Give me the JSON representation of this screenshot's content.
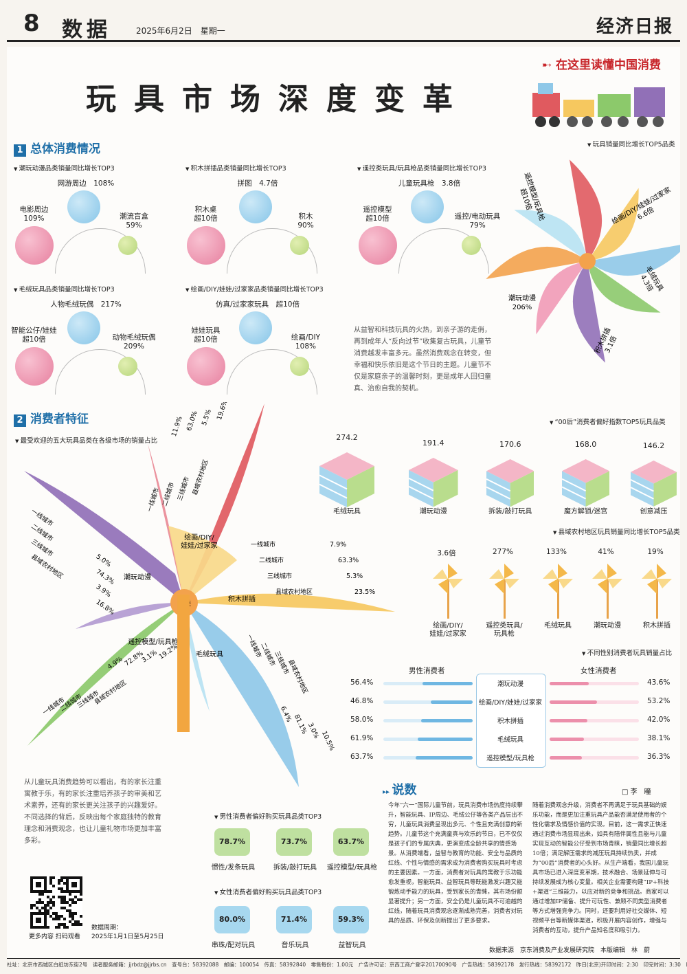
{
  "masthead": {
    "page_number": "8",
    "section": "数据",
    "date": "2025年6月2日　星期一",
    "brand": "经济日报"
  },
  "main_title": "玩具市场深度变革",
  "slogan": "在这里读懂中国消费",
  "section1": {
    "num": "1",
    "title": "总体消费情况",
    "panels": [
      {
        "subtitle": "潮玩动漫品类销量同比增长TOP3",
        "left": "电影周边\n109%",
        "top": "网游周边　108%",
        "right": "潮流盲盒\n59%"
      },
      {
        "subtitle": "积木拼插品类销量同比增长TOP3",
        "left": "积木桌\n超10倍",
        "top": "拼图　4.7倍",
        "right": "积木\n90%"
      },
      {
        "subtitle": "遥控类玩具/玩具枪品类销量同比增长TOP3",
        "left": "遥控模型\n超10倍",
        "top": "儿童玩具枪　3.8倍",
        "right": "遥控/电动玩具\n79%"
      },
      {
        "subtitle": "毛绒玩具品类销量同比增长TOP3",
        "left": "智能公仔/娃娃\n超10倍",
        "top": "人物毛绒玩偶　217%",
        "right": "动物毛绒玩偶\n209%"
      },
      {
        "subtitle": "绘画/DIY/娃娃/过家家品类销量同比增长TOP3",
        "left": "娃娃玩具\n超10倍",
        "top": "仿真/过家家玩具　超10倍",
        "right": "绘画/DIY\n108%"
      }
    ],
    "top5_title": "玩具销量同比增长TOP5品类",
    "top5": [
      {
        "label": "遥控模型/玩具枪",
        "value": "超10倍"
      },
      {
        "label": "绘画/DIY/娃娃/过家家",
        "value": "6.6倍"
      },
      {
        "label": "毛绒玩具",
        "value": "4.3倍"
      },
      {
        "label": "积木拼插",
        "value": "3.1倍"
      },
      {
        "label": "潮玩动漫",
        "value": "206%"
      }
    ],
    "text": "从益智和科技玩具的火热，到亲子游的走俏，再到成年人“反向过节”收集复古玩具，儿童节消费越发丰富多元。虽然消费观念在转变，但幸福和快乐依旧是这个节日的主题。儿童节不仅是家庭亲子的温馨时刻，更是成年人回归童真、治愈自我的契机。"
  },
  "section2": {
    "num": "2",
    "title": "消费者特征",
    "pinwheel_subtitle": "最受欢迎的五大玩具品类在各级市场的销量占比",
    "center": "品类",
    "categories": [
      {
        "name": "潮玩动漫",
        "rows": [
          [
            "一线城市",
            "5.0%"
          ],
          [
            "二线城市",
            "74.3%"
          ],
          [
            "三线城市",
            "3.9%"
          ],
          [
            "县域农村地区",
            "16.8%"
          ]
        ]
      },
      {
        "name": "遥控模型/玩具枪",
        "rows": [
          [
            "一线城市",
            "11.9%"
          ],
          [
            "二线城市",
            "63.0%"
          ],
          [
            "三线城市",
            "5.5%"
          ],
          [
            "县域农村地区",
            "19.6%"
          ]
        ]
      },
      {
        "name": "绘画/DIY/\n娃娃/过家家",
        "rows": [
          [
            "一线城市",
            "7.9%"
          ],
          [
            "二线城市",
            "63.3%"
          ],
          [
            "三线城市",
            "5.3%"
          ],
          [
            "县域农村地区",
            "23.5%"
          ]
        ]
      },
      {
        "name": "积木拼插",
        "rows": [
          [
            "一线城市",
            "6.4%"
          ],
          [
            "二线城市",
            "81.1%"
          ],
          [
            "三线城市",
            "3.0%"
          ],
          [
            "县域农村地区",
            "10.5%"
          ]
        ]
      },
      {
        "name": "毛绒玩具",
        "rows": [
          [
            "一线城市",
            "4.9%"
          ],
          [
            "二线城市",
            "72.8%"
          ],
          [
            "三线城市",
            "3.1%"
          ],
          [
            "县域农村地区",
            "19.2%"
          ]
        ]
      }
    ],
    "gen_title": "“00后”消费者偏好指数TOP5玩具品类",
    "gen": [
      {
        "label": "毛绒玩具",
        "value": "274.2",
        "n": 274.2
      },
      {
        "label": "潮玩动漫",
        "value": "191.4",
        "n": 191.4
      },
      {
        "label": "拆装/敲打玩具",
        "value": "170.6",
        "n": 170.6
      },
      {
        "label": "魔方解锁/迷宫",
        "value": "168.0",
        "n": 168.0
      },
      {
        "label": "创意减压",
        "value": "146.2",
        "n": 146.2
      }
    ],
    "county_title": "县域农村地区玩具销量同比增长TOP5品类",
    "county": [
      {
        "label": "绘画/DIY/\n娃娃/过家家",
        "value": "3.6倍"
      },
      {
        "label": "遥控类玩具/\n玩具枪",
        "value": "277%"
      },
      {
        "label": "毛绒玩具",
        "value": "133%"
      },
      {
        "label": "潮玩动漫",
        "value": "41%"
      },
      {
        "label": "积木拼插",
        "value": "19%"
      }
    ],
    "gender_title": "不同性别消费者玩具销量占比",
    "male_label": "男性消费者",
    "female_label": "女性消费者",
    "gender": [
      {
        "cat": "潮玩动漫",
        "male": "56.4%",
        "female": "43.6%",
        "m": 56.4
      },
      {
        "cat": "绘画/DIY/娃娃/过家家",
        "male": "46.8%",
        "female": "53.2%",
        "m": 46.8
      },
      {
        "cat": "积木拼插",
        "male": "58.0%",
        "female": "42.0%",
        "m": 58.0
      },
      {
        "cat": "毛绒玩具",
        "male": "61.9%",
        "female": "38.1%",
        "m": 61.9
      },
      {
        "cat": "遥控模型/玩具枪",
        "male": "63.7%",
        "female": "36.3%",
        "m": 63.7
      }
    ],
    "male_top_title": "男性消费者偏好购买玩具品类TOP3",
    "male_top": [
      {
        "v": "78.7%",
        "l": "惯性/发条玩具"
      },
      {
        "v": "73.7%",
        "l": "拆装/敲打玩具"
      },
      {
        "v": "63.7%",
        "l": "遥控模型/玩具枪"
      }
    ],
    "female_top_title": "女性消费者偏好购买玩具品类TOP3",
    "female_top": [
      {
        "v": "80.0%",
        "l": "串珠/配对玩具"
      },
      {
        "v": "71.4%",
        "l": "音乐玩具"
      },
      {
        "v": "59.3%",
        "l": "益智玩具"
      }
    ],
    "text": "从儿童玩具消费趋势可以看出，有的家长注重寓教于乐，有的家长注重培养孩子的审美和艺术素养，还有的家长更关注孩子的兴趣爱好。不同选择的背后，反映出每个家庭独特的教育理念和消费观念，也让儿童礼物市场更加丰富多彩。"
  },
  "commentary": {
    "title": "说数",
    "author": "李　瞳",
    "col1": "今年“六一”国际儿童节前，玩具消费市场热度持续攀升，智能玩具、IP周边、毛绒公仔等各类产品层出不穷，儿童玩具消费呈现出多元、个性且充满创意的新趋势。儿童节这个充满童真与欢乐的节日，已不仅仅是孩子们的专属庆典，更演变成全龄共享的情感场景。从消费端看，益智与教育的功能、安全与品质的红线、个性与情感的需求成为消费者购买玩具时考虑的主要因素。一方面，消费者对玩具的寓教于乐功能愈发重视，智能玩具、益智玩具等既能激发兴趣又能锻炼动手能力的玩具，受到家长的青睐，其市场份额显著提升；另一方面，安全仍是儿童玩具不可逾越的红线，随着玩具消费观念逐渐成熟完善，消费者对玩具的品质、环保及创新提出了更多要求。",
    "col2": "随着消费观念升级，消费者不再满足于玩具基础的娱乐功能，而是更加注重玩具产品能否满足使用者的个性化需求及情感价值的实现。目前，这一需求正快速通过消费市场显现出来，如具有陪伴属性且能与儿童实现互动的智能公仔受到市场青睐，销量同比增长超10倍；满足解压需求的减压玩具持续热卖，并成为“00后”消费者的心头好。从生产端看，我国儿童玩具市场已进入深度变革期，技术融合、场景延伸与可持续发展成为核心变量。相关企业需要构建“IP+科技+渠道”三维能力，以应对新的竞争和挑战。商家可以通过增加IP储备、提升可玩性、兼顾不同类型消费者等方式增强竞争力。同时，还要利用好社交媒体、短视频平台等新媒体渠道，积极开展内容创作，增强与消费者的互动，提升产品知名度和吸引力。"
  },
  "qr_caption": "更多内容 扫码观看",
  "data_period_label": "数据周期：",
  "data_period": "2025年1月1日至5月25日",
  "source": "数据来源　京东消费及产业发展研究院　本版编辑　林　蔚",
  "footer": "社址：北京市西城区白纸坊东街2号　读者服务邮箱：jjrbdz@jjrbs.cn　查号台：58392088　邮编：100054　传真：58392840　零售每份：1.00元　广告许可证：京西工商广登字20170090号　广告热线：58392178　发行热线：58392172　昨日(北京)开印时间：2:30　印完时间：3:30　印刷：",
  "colors": {
    "red": "#e05a5f",
    "pink": "#f19ab6",
    "purple": "#9170b7",
    "yellow": "#f6c85f",
    "blue": "#8fc8e8",
    "green": "#8cc96b",
    "orange": "#f3a24c"
  }
}
